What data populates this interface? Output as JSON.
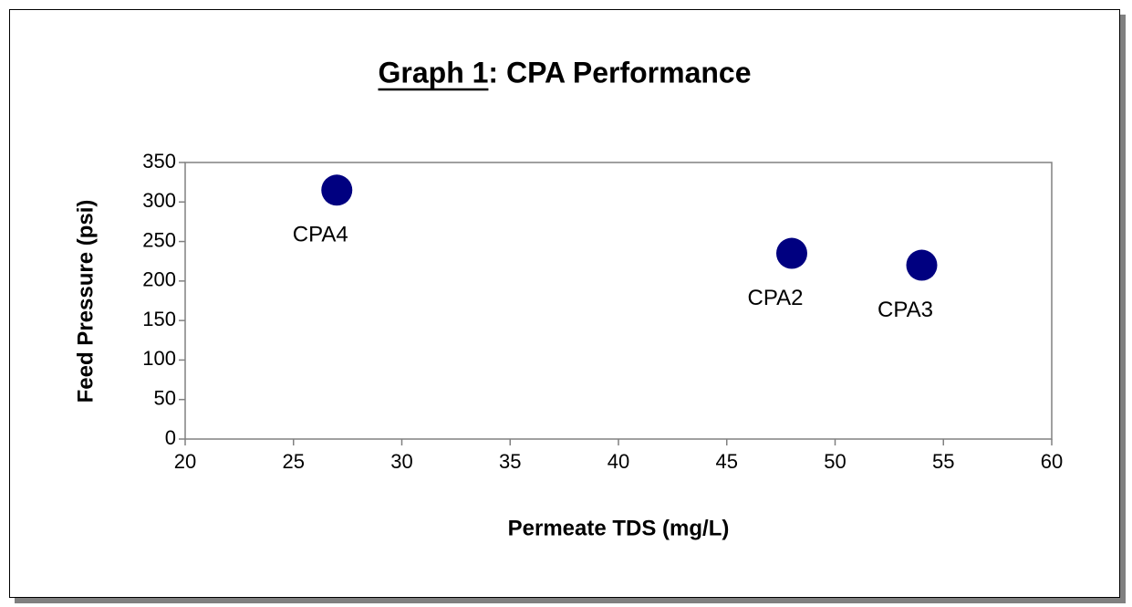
{
  "chart_data": {
    "type": "scatter",
    "title": "Graph 1: CPA Performance",
    "x_label": "Permeate TDS (mg/L)",
    "y_label": "Feed Pressure (psi)",
    "x": [
      27,
      48,
      54
    ],
    "values": [
      315,
      235,
      220
    ],
    "point_labels": [
      "CPA4",
      "CPA2",
      "CPA3"
    ],
    "color": "#000080",
    "xlim": [
      20,
      60
    ],
    "xticks": [
      20,
      25,
      30,
      35,
      40,
      45,
      50,
      55,
      60
    ],
    "ylim": [
      0,
      350
    ],
    "yticks": [
      0,
      50,
      100,
      150,
      200,
      250,
      300,
      350
    ],
    "grid": false
  }
}
